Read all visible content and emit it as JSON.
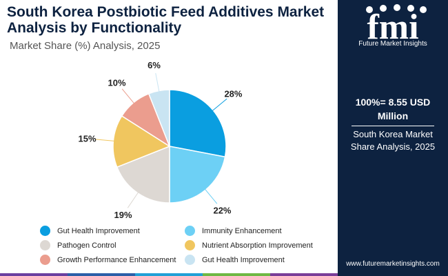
{
  "header": {
    "title": "South Korea Postbiotic Feed Additives Market Analysis by Functionality",
    "subtitle": "Market Share (%) Analysis, 2025"
  },
  "chart_data": {
    "type": "pie",
    "title": "South Korea Postbiotic Feed Additives Market Analysis by Functionality",
    "subtitle": "Market Share (%) Analysis, 2025",
    "categories": [
      "Gut Health Improvement",
      "Immunity Enhancement",
      "Pathogen Control",
      "Nutrient Absorption Improvement",
      "Growth Performance Enhancement",
      "Gut Health Improvement"
    ],
    "values": [
      28,
      22,
      19,
      15,
      10,
      6
    ],
    "value_labels": [
      "28%",
      "22%",
      "19%",
      "15%",
      "10%",
      "6%"
    ],
    "colors": [
      "#0a9ee0",
      "#6dd0f5",
      "#ddd8d3",
      "#f0c65f",
      "#eb9d8e",
      "#c9e4f2"
    ],
    "legend_position": "bottom"
  },
  "sidebar": {
    "logo_text": "fmi",
    "logo_caption": "Future Market Insights",
    "total_label": "100%= 8.55 USD Million",
    "market_label": "South Korea Market Share Analysis, 2025",
    "website": "www.futuremarketinsights.com"
  },
  "bottom_bar_colors": [
    "#6b3fa0",
    "#2c5fa8",
    "#21a0d6",
    "#6fb844",
    "#7a3d98"
  ]
}
